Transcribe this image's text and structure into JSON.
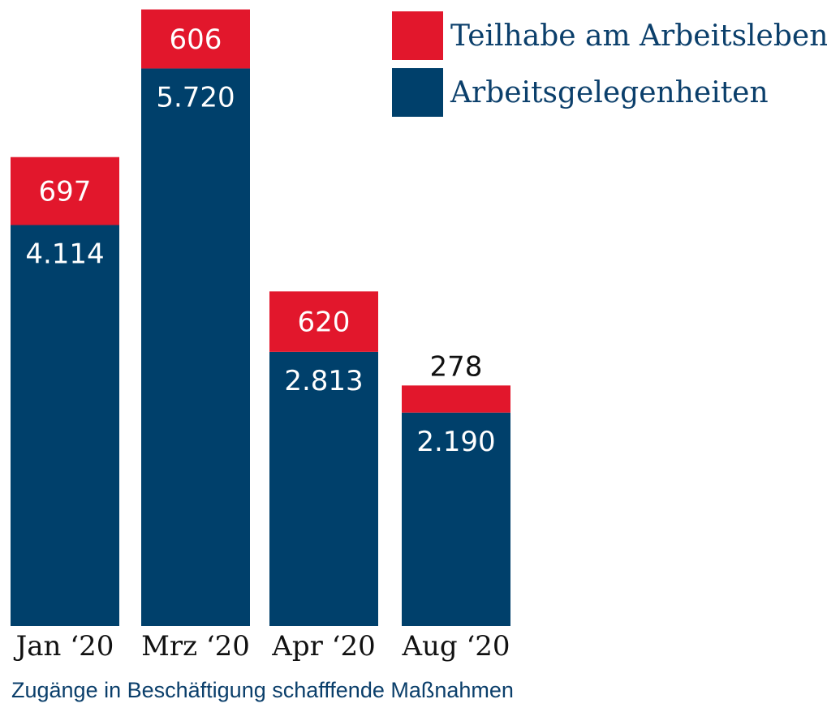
{
  "caption": "Zugänge in Beschäftigung schafffende Maßnahmen",
  "colors": {
    "Arbeitsgelegenheiten": "#00406b",
    "Teilhabe am Arbeitsleben": "#e2172c"
  },
  "chart_data": {
    "type": "bar",
    "stacked": true,
    "title": "",
    "xlabel": "",
    "ylabel": "",
    "categories": [
      "Jan ‘20",
      "Mrz ‘20",
      "Apr ‘20",
      "Aug ‘20"
    ],
    "series": [
      {
        "name": "Arbeitsgelegenheiten",
        "values": [
          4114,
          5720,
          2813,
          2190
        ],
        "labels": [
          "4.114",
          "5.720",
          "2.813",
          "2.190"
        ]
      },
      {
        "name": "Teilhabe am Arbeitsleben",
        "values": [
          697,
          606,
          620,
          278
        ],
        "labels": [
          "697",
          "606",
          "620",
          "278"
        ]
      }
    ],
    "legend_order": [
      "Teilhabe am Arbeitsleben",
      "Arbeitsgelegenheiten"
    ],
    "legend_position": "top-right",
    "grid": false
  }
}
